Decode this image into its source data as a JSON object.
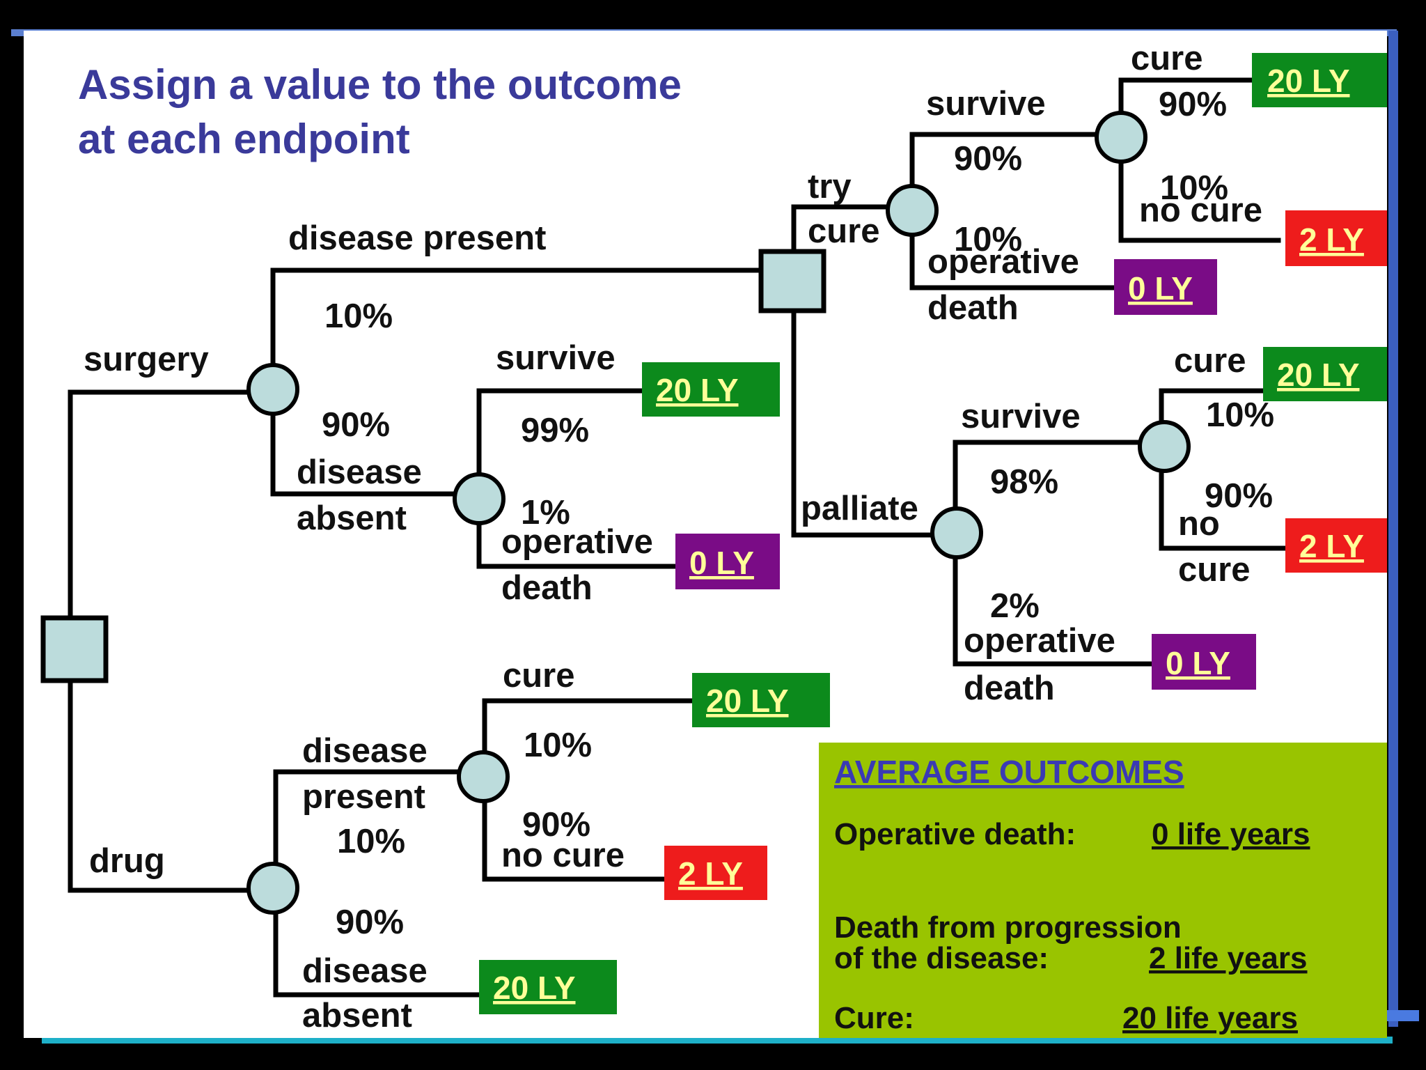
{
  "slide": {
    "title_line1": "Assign a value to the outcome",
    "title_line2": "at each endpoint"
  },
  "branches": {
    "surgery": "surgery",
    "drug": "drug",
    "disease_present": "disease present",
    "p10_a": "10%",
    "p90_a": "90%",
    "disease_absent_1": "disease",
    "disease_absent_2": "absent",
    "survive_a": "survive",
    "p99": "99%",
    "p1": "1%",
    "operative_a": "operative",
    "death_a": "death",
    "try": "try",
    "cure_try": "cure",
    "survive_b": "survive",
    "p90_b": "90%",
    "p10_b": "10%",
    "operative_b": "operative",
    "death_b": "death",
    "cure_b": "cure",
    "p90_c": "90%",
    "p10_c": "10%",
    "no_cure_b": "no cure",
    "palliate": "palliate",
    "survive_c": "survive",
    "p98": "98%",
    "p2": "2%",
    "operative_c": "operative",
    "death_c": "death",
    "cure_c": "cure",
    "p10_d": "10%",
    "p90_d": "90%",
    "no_c": "no",
    "cure_c2": "cure",
    "cure_drug": "cure",
    "p10_e": "10%",
    "p90_e": "90%",
    "no_cure_drug": "no cure",
    "dp_drug_1": "disease",
    "dp_drug_2": "present",
    "p10_f": "10%",
    "p90_f": "90%",
    "da_drug_1": "disease",
    "da_drug_2": "absent"
  },
  "outcomes": {
    "ly20": "20 LY",
    "ly2": "2 LY",
    "ly0": "0 LY"
  },
  "summary": {
    "heading": "AVERAGE OUTCOMES",
    "op_label": "Operative death:",
    "op_value": "0 life years",
    "prog_label_1": "Death from progression",
    "prog_label_2": "of the disease:",
    "prog_value": "2 life years",
    "cure_label": "Cure:",
    "cure_value": "20 life years"
  },
  "colors": {
    "title": "#3a3a9a",
    "green": "#0c8a1c",
    "red": "#ee1c1c",
    "purple": "#7a0c86",
    "node": "#bcdcdc",
    "summary_bg": "#99c400",
    "summary_heading": "#3a3ab4",
    "outcome_text": "#ffff99"
  }
}
